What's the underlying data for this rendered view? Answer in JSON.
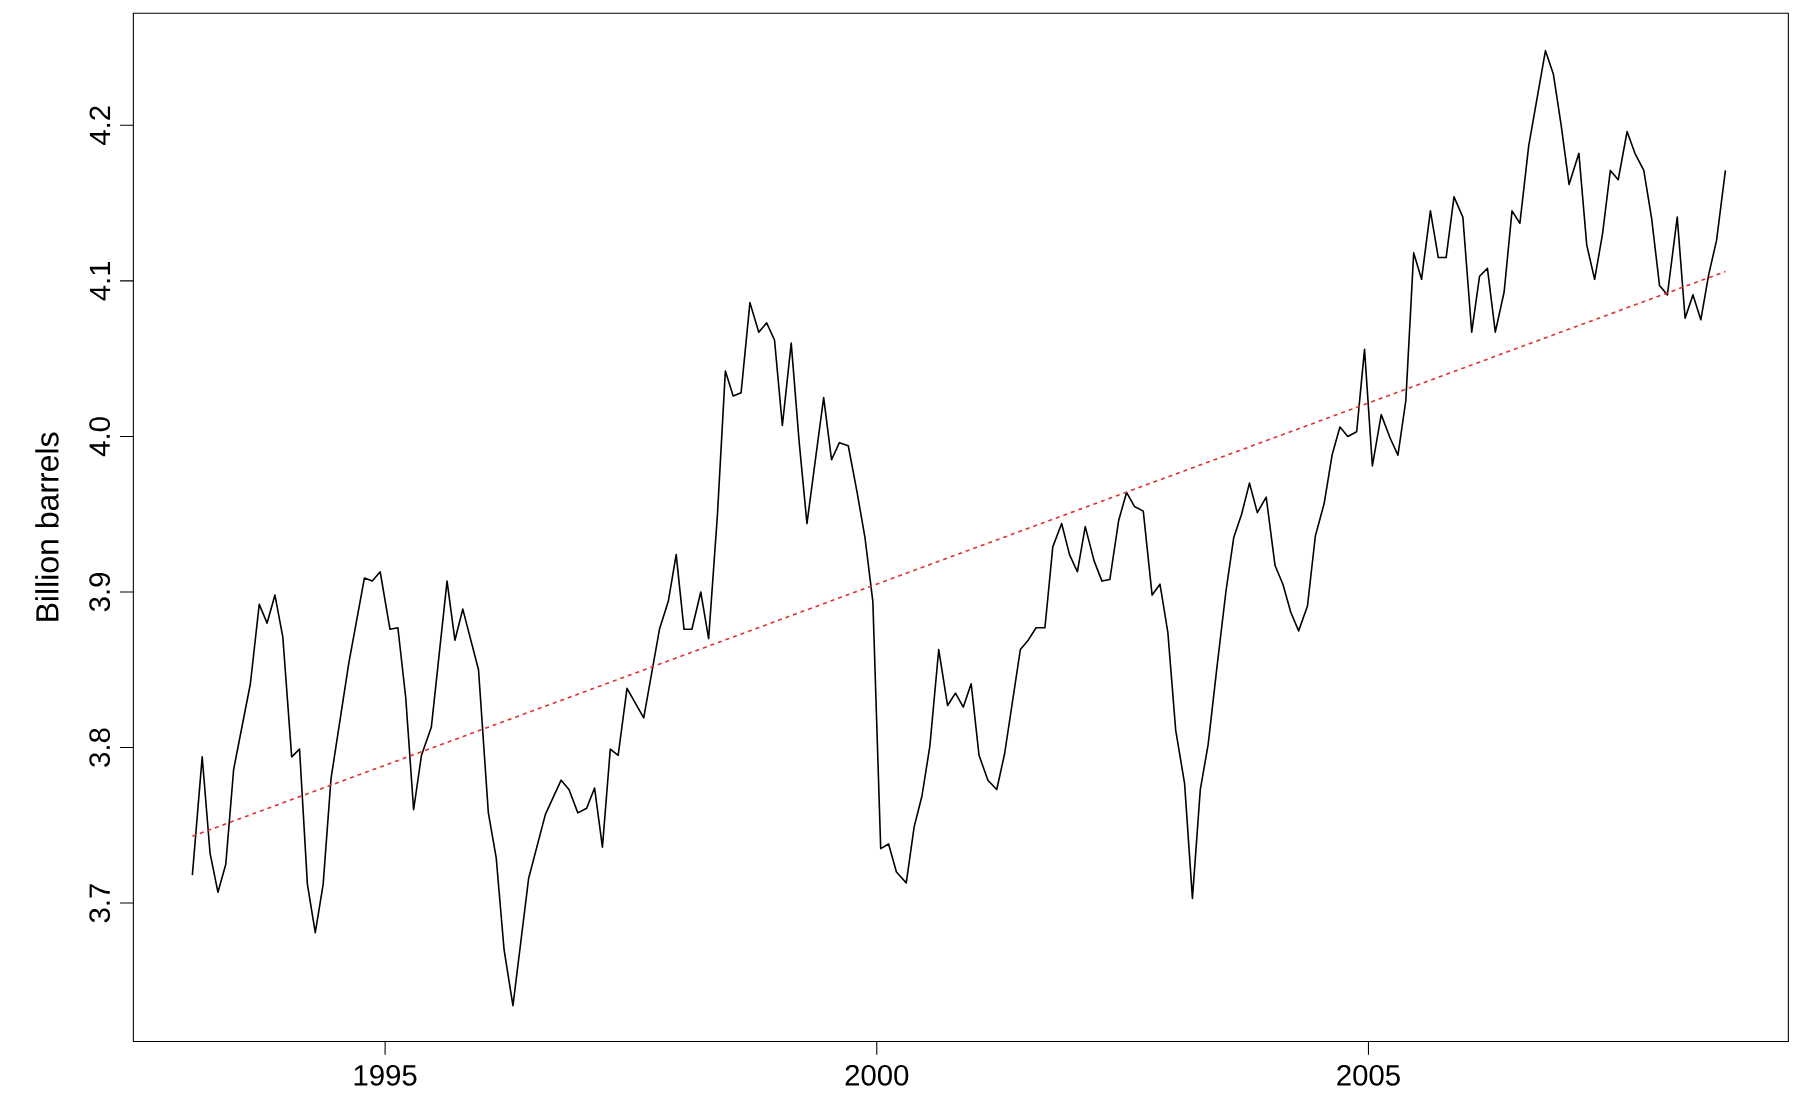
{
  "chart_data": {
    "type": "line",
    "ylabel": "Billion barrels",
    "xlim": [
      1992.44,
      2009.27
    ],
    "ylim": [
      3.611,
      4.272
    ],
    "xticks": [
      1995,
      2000,
      2005
    ],
    "yticks": [
      3.7,
      3.8,
      3.9,
      {
        "value": 4.0,
        "label": "4.0"
      },
      4.1,
      4.2
    ],
    "series": [
      {
        "color": "#000000",
        "line_style": "solid",
        "x": [
          1993.04,
          1993.14,
          1993.22,
          1993.3,
          1993.38,
          1993.46,
          1993.63,
          1993.72,
          1993.8,
          1993.88,
          1993.96,
          1994.05,
          1994.13,
          1994.21,
          1994.29,
          1994.37,
          1994.45,
          1994.63,
          1994.79,
          1994.87,
          1994.95,
          1995.05,
          1995.13,
          1995.21,
          1995.29,
          1995.37,
          1995.47,
          1995.63,
          1995.71,
          1995.79,
          1995.95,
          1996.05,
          1996.13,
          1996.21,
          1996.3,
          1996.46,
          1996.63,
          1996.79,
          1996.87,
          1996.96,
          1997.05,
          1997.13,
          1997.21,
          1997.29,
          1997.37,
          1997.46,
          1997.63,
          1997.79,
          1997.88,
          1997.96,
          1998.04,
          1998.12,
          1998.21,
          1998.29,
          1998.38,
          1998.46,
          1998.54,
          1998.62,
          1998.71,
          1998.8,
          1998.88,
          1998.96,
          1999.04,
          1999.13,
          1999.21,
          1999.29,
          1999.38,
          1999.46,
          1999.54,
          1999.62,
          1999.71,
          1999.8,
          1999.88,
          1999.96,
          2000.04,
          2000.12,
          2000.2,
          2000.3,
          2000.38,
          2000.46,
          2000.54,
          2000.63,
          2000.72,
          2000.8,
          2000.88,
          2000.96,
          2001.04,
          2001.13,
          2001.22,
          2001.3,
          2001.46,
          2001.54,
          2001.62,
          2001.71,
          2001.79,
          2001.88,
          2001.96,
          2002.04,
          2002.12,
          2002.21,
          2002.29,
          2002.37,
          2002.46,
          2002.54,
          2002.62,
          2002.71,
          2002.8,
          2002.88,
          2002.96,
          2003.04,
          2003.13,
          2003.21,
          2003.29,
          2003.37,
          2003.46,
          2003.55,
          2003.63,
          2003.71,
          2003.79,
          2003.87,
          2003.96,
          2004.05,
          2004.13,
          2004.21,
          2004.29,
          2004.38,
          2004.46,
          2004.55,
          2004.63,
          2004.71,
          2004.79,
          2004.88,
          2004.96,
          2005.04,
          2005.13,
          2005.22,
          2005.3,
          2005.38,
          2005.46,
          2005.54,
          2005.63,
          2005.71,
          2005.79,
          2005.87,
          2005.96,
          2006.05,
          2006.13,
          2006.21,
          2006.29,
          2006.38,
          2006.46,
          2006.54,
          2006.63,
          2006.8,
          2006.88,
          2006.96,
          2007.04,
          2007.14,
          2007.22,
          2007.3,
          2007.38,
          2007.46,
          2007.54,
          2007.63,
          2007.71,
          2007.8,
          2007.88,
          2007.96,
          2008.04,
          2008.14,
          2008.22,
          2008.3,
          2008.38,
          2008.46,
          2008.54,
          2008.63
        ],
        "values": [
          3.718,
          3.794,
          3.732,
          3.707,
          3.725,
          3.786,
          3.841,
          3.892,
          3.88,
          3.898,
          3.871,
          3.794,
          3.799,
          3.712,
          3.681,
          3.712,
          3.78,
          3.854,
          3.909,
          3.907,
          3.913,
          3.876,
          3.877,
          3.832,
          3.76,
          3.795,
          3.813,
          3.907,
          3.869,
          3.889,
          3.85,
          3.758,
          3.729,
          3.67,
          3.634,
          3.716,
          3.757,
          3.779,
          3.773,
          3.758,
          3.761,
          3.774,
          3.736,
          3.799,
          3.795,
          3.838,
          3.819,
          3.876,
          3.894,
          3.924,
          3.876,
          3.876,
          3.9,
          3.87,
          3.95,
          4.042,
          4.026,
          4.028,
          4.086,
          4.067,
          4.073,
          4.062,
          4.007,
          4.06,
          3.997,
          3.944,
          3.987,
          4.025,
          3.985,
          3.996,
          3.994,
          3.964,
          3.935,
          3.894,
          3.735,
          3.738,
          3.72,
          3.713,
          3.749,
          3.769,
          3.801,
          3.863,
          3.827,
          3.835,
          3.826,
          3.841,
          3.795,
          3.779,
          3.773,
          3.796,
          3.863,
          3.869,
          3.877,
          3.877,
          3.929,
          3.944,
          3.924,
          3.913,
          3.942,
          3.92,
          3.907,
          3.908,
          3.946,
          3.964,
          3.955,
          3.952,
          3.898,
          3.905,
          3.874,
          3.811,
          3.777,
          3.703,
          3.773,
          3.802,
          3.852,
          3.9,
          3.935,
          3.95,
          3.97,
          3.951,
          3.961,
          3.917,
          3.905,
          3.887,
          3.875,
          3.891,
          3.936,
          3.957,
          3.988,
          4.006,
          4.0,
          4.003,
          4.056,
          3.981,
          4.014,
          3.999,
          3.988,
          4.023,
          4.118,
          4.101,
          4.145,
          4.115,
          4.115,
          4.154,
          4.141,
          4.067,
          4.103,
          4.108,
          4.067,
          4.093,
          4.145,
          4.137,
          4.187,
          4.248,
          4.233,
          4.2,
          4.162,
          4.182,
          4.123,
          4.101,
          4.13,
          4.171,
          4.165,
          4.196,
          4.182,
          4.171,
          4.14,
          4.097,
          4.091,
          4.141,
          4.076,
          4.091,
          4.075,
          4.104,
          4.126,
          4.171
        ]
      },
      {
        "color": "#e03030",
        "line_style": "dashed",
        "x": [
          1993.04,
          2008.63
        ],
        "values": [
          3.743,
          4.106
        ]
      }
    ]
  }
}
